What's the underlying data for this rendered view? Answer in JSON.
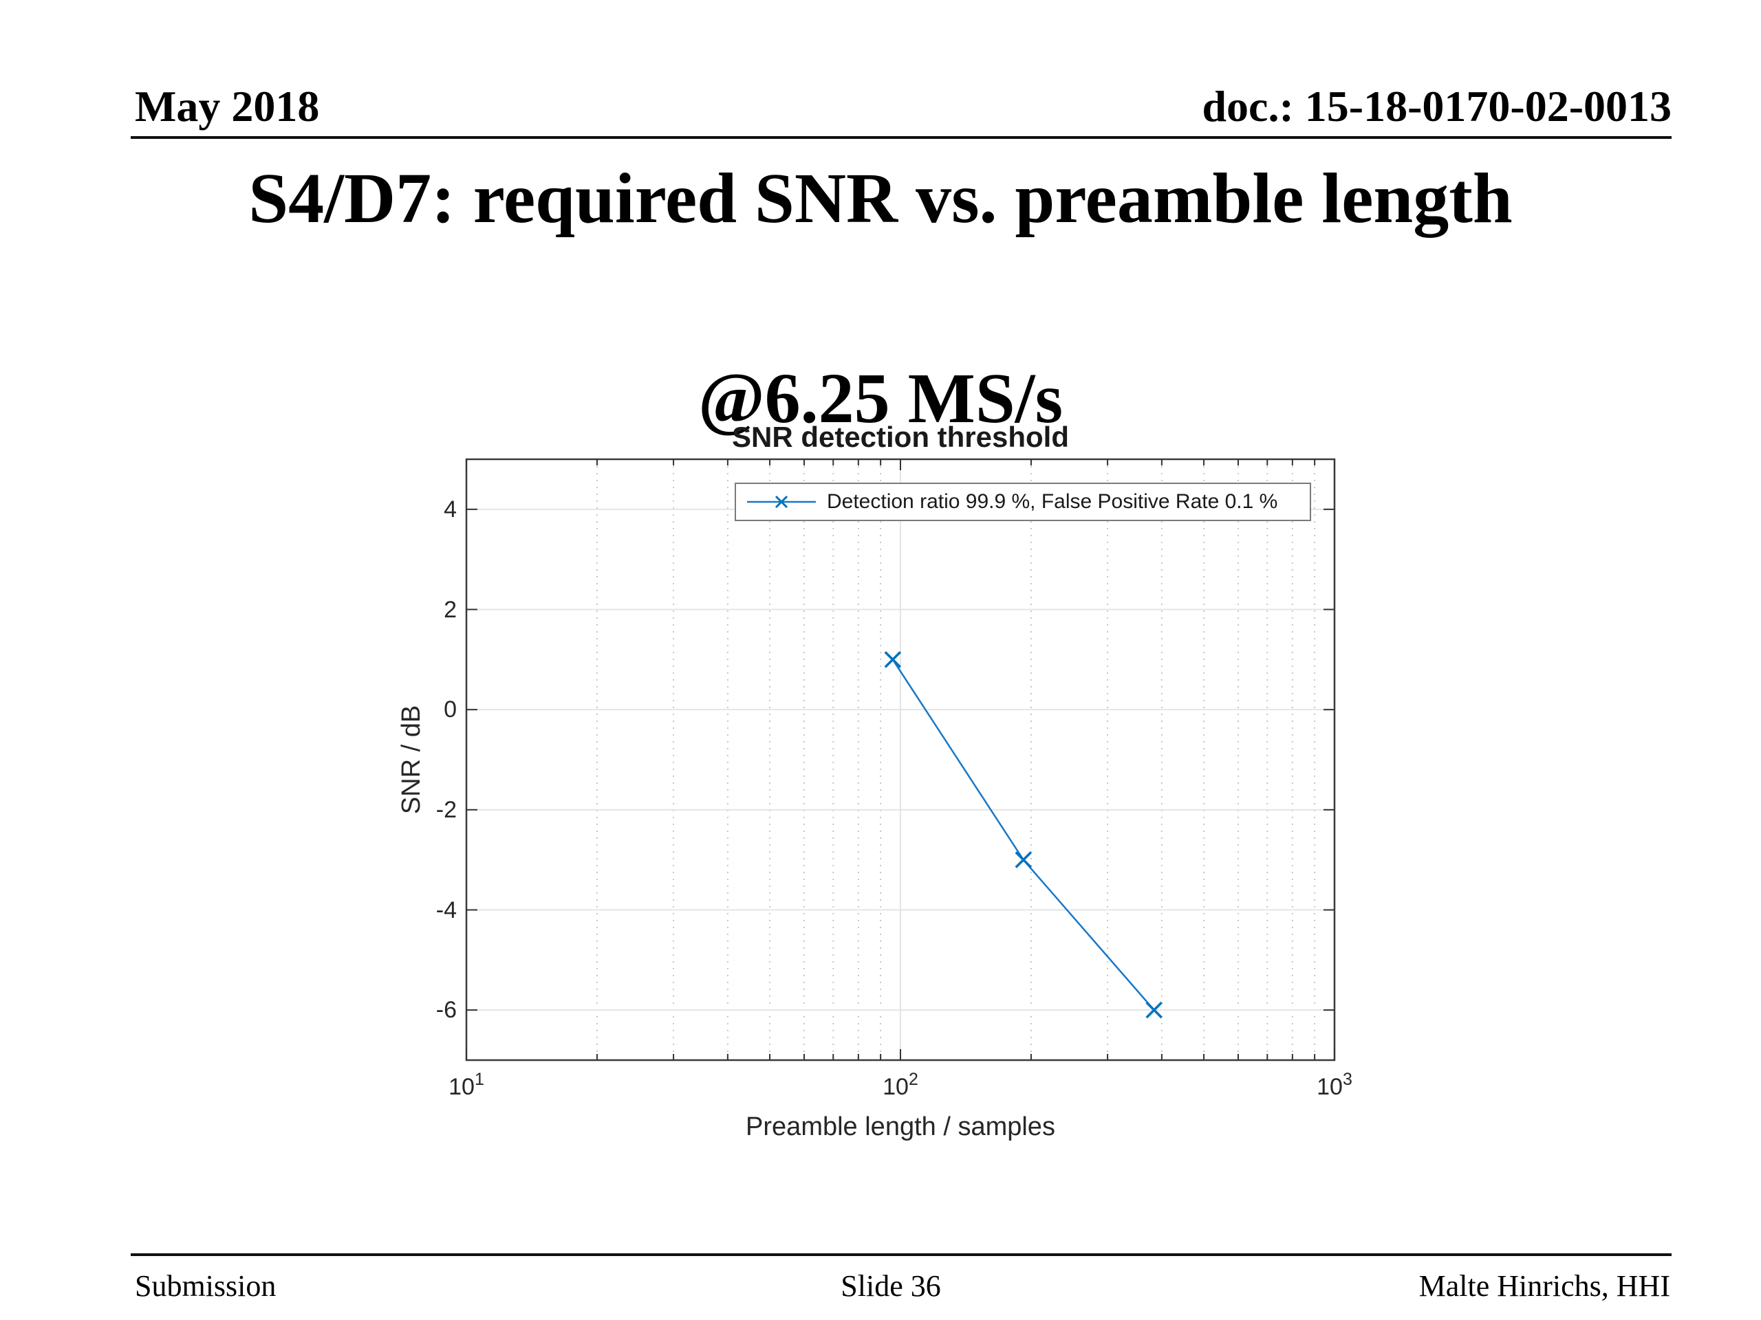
{
  "slide": {
    "header_left": "May 2018",
    "header_right": "doc.: 15-18-0170-02-0013",
    "title_line1": "S4/D7: required SNR vs. preamble length",
    "title_line2": "@6.25 MS/s",
    "footer_left": "Submission",
    "footer_center": "Slide 36",
    "footer_right": "Malte Hinrichs, HHI"
  },
  "chart_data": {
    "type": "line",
    "title": "SNR detection threshold",
    "xlabel": "Preamble length / samples",
    "ylabel": "SNR / dB",
    "x_scale": "log",
    "xlim": [
      10,
      1000
    ],
    "ylim": [
      -7,
      5
    ],
    "xticks": [
      10,
      100,
      1000
    ],
    "xtick_base": "10",
    "xtick_exponents": [
      "1",
      "2",
      "3"
    ],
    "yticks": [
      4,
      2,
      0,
      -2,
      -4,
      -6
    ],
    "ytick_labels": [
      "4",
      "2",
      "0",
      "-2",
      "-4",
      "-6"
    ],
    "grid": true,
    "minor_grid": "vertical-dotted",
    "legend_position": "top-inside",
    "series": [
      {
        "name": "Detection ratio 99.9 %, False Positive Rate 0.1 %",
        "marker": "x",
        "line_color": "#1878c8",
        "marker_color": "#0072BD",
        "x": [
          96,
          192,
          384
        ],
        "y": [
          1,
          -3,
          -6
        ]
      }
    ]
  }
}
